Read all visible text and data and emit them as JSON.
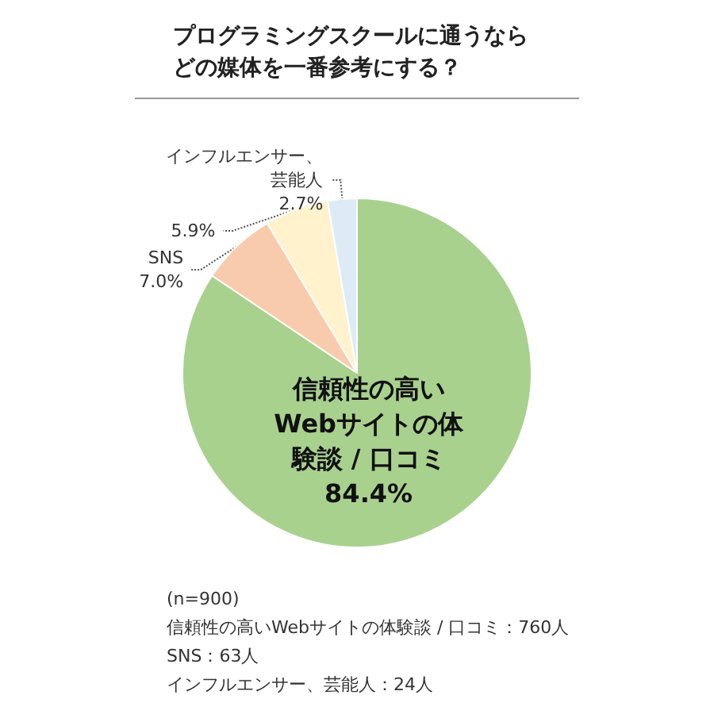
{
  "chart_data": {
    "type": "pie",
    "title": "プログラミングスクールに通うならどの媒体を一番参考にする？",
    "categories": [
      "信頼性の高いWebサイトの体験談 / 口コミ",
      "SNS",
      null,
      "インフルエンサー、芸能人"
    ],
    "values": [
      84.4,
      7.0,
      5.9,
      2.7
    ],
    "colors": [
      "#a9d18e",
      "#f8cbad",
      "#fff2cc",
      "#deebf7"
    ],
    "value_labels": [
      "84.4%",
      "7.0%",
      "5.9%",
      "2.7%"
    ],
    "annotations": [
      "(n=900)",
      "信頼性の高いWebサイトの体験談 / 口コミ：760人",
      "SNS：63人",
      "インフルエンサー、芸能人：24人"
    ],
    "legend": false
  }
}
